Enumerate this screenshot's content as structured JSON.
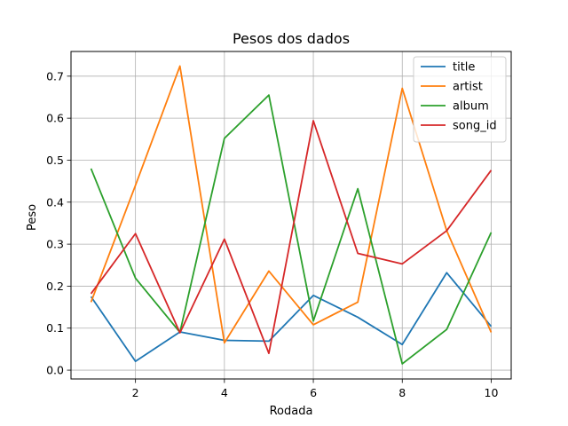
{
  "chart_data": {
    "type": "line",
    "title": "Pesos dos dados",
    "xlabel": "Rodada",
    "ylabel": "Peso",
    "xlim": [
      0.55,
      10.45
    ],
    "ylim": [
      -0.021,
      0.7588
    ],
    "xticks": [
      2,
      4,
      6,
      8,
      10
    ],
    "yticks": [
      0.0,
      0.1,
      0.2,
      0.3,
      0.4,
      0.5,
      0.6,
      0.7
    ],
    "ytick_labels": [
      "0.0",
      "0.1",
      "0.2",
      "0.3",
      "0.4",
      "0.5",
      "0.6",
      "0.7"
    ],
    "grid": true,
    "legend_position": "upper right",
    "x": [
      1,
      2,
      3,
      4,
      5,
      6,
      7,
      8,
      9,
      10
    ],
    "series": [
      {
        "name": "title",
        "color": "#1f77b4",
        "values": [
          0.175,
          0.021,
          0.091,
          0.071,
          0.069,
          0.178,
          0.126,
          0.061,
          0.232,
          0.104
        ]
      },
      {
        "name": "artist",
        "color": "#ff7f0e",
        "values": [
          0.162,
          0.44,
          0.724,
          0.065,
          0.236,
          0.108,
          0.162,
          0.671,
          0.332,
          0.09
        ]
      },
      {
        "name": "album",
        "color": "#2ca02c",
        "values": [
          0.48,
          0.219,
          0.09,
          0.552,
          0.655,
          0.117,
          0.432,
          0.015,
          0.097,
          0.328
        ]
      },
      {
        "name": "song_id",
        "color": "#d62728",
        "values": [
          0.182,
          0.325,
          0.089,
          0.312,
          0.04,
          0.594,
          0.278,
          0.253,
          0.332,
          0.476
        ]
      }
    ]
  }
}
